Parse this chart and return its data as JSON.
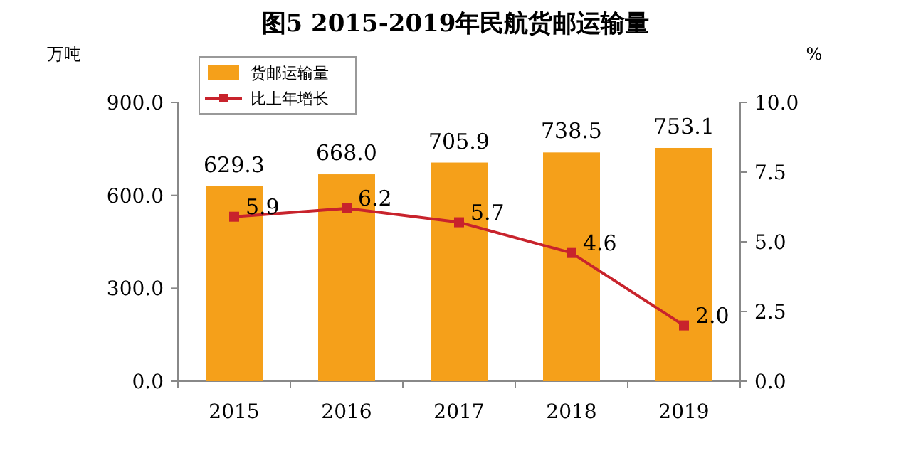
{
  "chart_data": {
    "type": "bar",
    "title": "图5 2015-2019年民航货邮运输量",
    "ylabel": "万吨",
    "y2label": "%",
    "categories": [
      "2015",
      "2016",
      "2017",
      "2018",
      "2019"
    ],
    "series": [
      {
        "name": "货邮运输量",
        "color": "#f5a01a",
        "values": [
          629.3,
          668.0,
          705.9,
          738.5,
          753.1
        ],
        "value_labels": [
          "629.3",
          "668.0",
          "705.9",
          "738.5",
          "753.1"
        ]
      },
      {
        "name": "比上年增长",
        "type": "line",
        "axis": "y2",
        "color": "#c8232c",
        "values": [
          5.9,
          6.2,
          5.7,
          4.6,
          2.0
        ],
        "value_labels": [
          "5.9",
          "6.2",
          "5.7",
          "4.6",
          "2.0"
        ]
      }
    ],
    "ylim": [
      0,
      900
    ],
    "yticks": [
      {
        "value": 0,
        "label": "0.0"
      },
      {
        "value": 300,
        "label": "300.0"
      },
      {
        "value": 600,
        "label": "600.0"
      },
      {
        "value": 900,
        "label": "900.0"
      }
    ],
    "y2lim": [
      0,
      10
    ],
    "y2ticks": [
      {
        "value": 0,
        "label": "0.0"
      },
      {
        "value": 2.5,
        "label": "2.5"
      },
      {
        "value": 5,
        "label": "5.0"
      },
      {
        "value": 7.5,
        "label": "7.5"
      },
      {
        "value": 10,
        "label": "10.0"
      }
    ],
    "marker": "square",
    "line_style": "solid",
    "legend": "top left",
    "grid": false
  }
}
